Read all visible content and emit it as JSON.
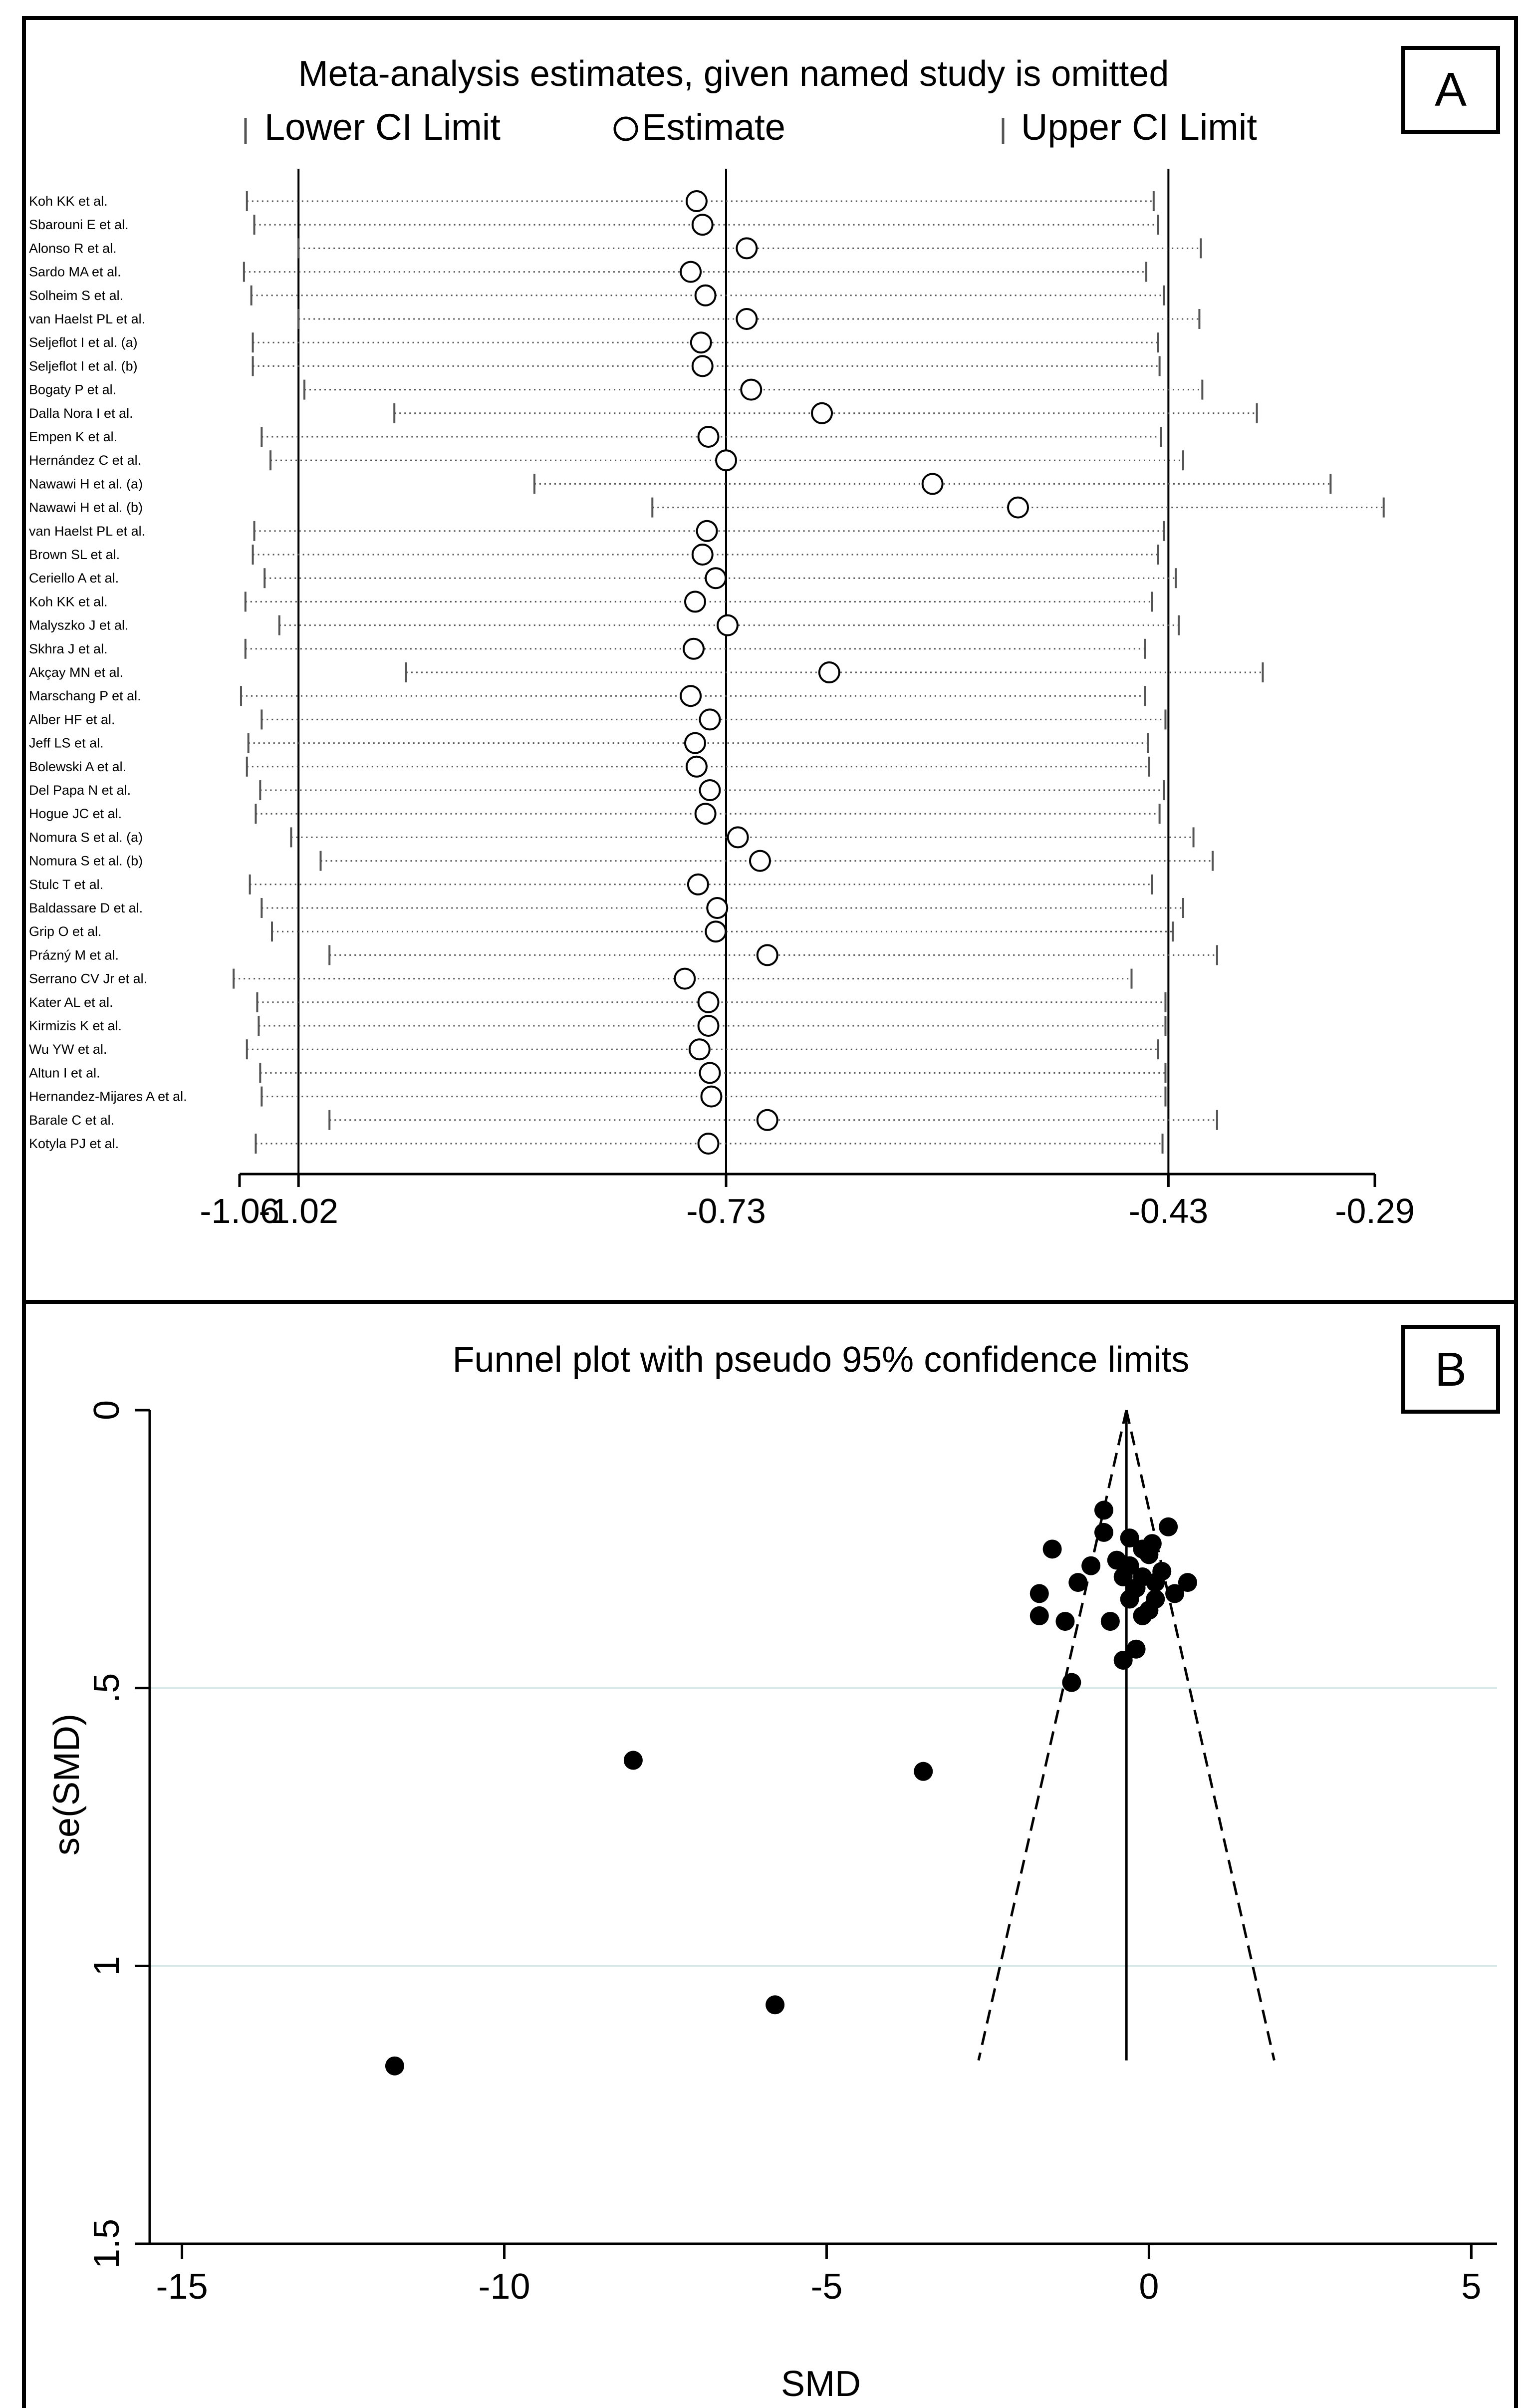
{
  "charts": {
    "sensitivity": {
      "type": "scatter",
      "panel_label": "A",
      "title": "Meta-analysis estimates, given named study is omitted",
      "legend": {
        "lower": "Lower CI Limit",
        "estimate": "Estimate",
        "upper": "Upper CI Limit"
      },
      "xticks": [
        -1.06,
        -1.02,
        -0.73,
        -0.43,
        -0.29
      ],
      "xtick_labels": [
        "-1.06",
        "-1.02",
        "-0.73",
        "-0.43",
        "-0.29"
      ],
      "reference_lines": [
        -1.02,
        -0.73,
        -0.43
      ],
      "xlim": [
        -1.06,
        -0.29
      ],
      "studies": [
        {
          "name": "Koh KK et al.",
          "lower": -1.055,
          "estimate": -0.75,
          "upper": -0.44
        },
        {
          "name": "Sbarouni E et al.",
          "lower": -1.05,
          "estimate": -0.746,
          "upper": -0.437
        },
        {
          "name": "Alonso R et al.",
          "lower": -1.02,
          "estimate": -0.716,
          "upper": -0.408
        },
        {
          "name": "Sardo MA et al.",
          "lower": -1.057,
          "estimate": -0.754,
          "upper": -0.445
        },
        {
          "name": "Solheim S et al.",
          "lower": -1.052,
          "estimate": -0.744,
          "upper": -0.433
        },
        {
          "name": "van Haelst PL et al.",
          "lower": -1.02,
          "estimate": -0.716,
          "upper": -0.409
        },
        {
          "name": "Seljeflot I et al. (a)",
          "lower": -1.051,
          "estimate": -0.747,
          "upper": -0.437
        },
        {
          "name": "Seljeflot I et al. (b)",
          "lower": -1.051,
          "estimate": -0.746,
          "upper": -0.436
        },
        {
          "name": "Bogaty P et al.",
          "lower": -1.016,
          "estimate": -0.713,
          "upper": -0.407
        },
        {
          "name": "Dalla Nora I et al.",
          "lower": -0.955,
          "estimate": -0.665,
          "upper": -0.37
        },
        {
          "name": "Empen K et al.",
          "lower": -1.045,
          "estimate": -0.742,
          "upper": -0.435
        },
        {
          "name": "Hernández C et al.",
          "lower": -1.039,
          "estimate": -0.73,
          "upper": -0.42
        },
        {
          "name": "Nawawi H et al. (a)",
          "lower": -0.86,
          "estimate": -0.59,
          "upper": -0.32
        },
        {
          "name": "Nawawi H et al. (b)",
          "lower": -0.78,
          "estimate": -0.532,
          "upper": -0.284
        },
        {
          "name": "van Haelst PL et al.",
          "lower": -1.05,
          "estimate": -0.743,
          "upper": -0.433
        },
        {
          "name": "Brown SL et al.",
          "lower": -1.051,
          "estimate": -0.746,
          "upper": -0.437
        },
        {
          "name": "Ceriello A et al.",
          "lower": -1.043,
          "estimate": -0.737,
          "upper": -0.425
        },
        {
          "name": "Koh KK et al.",
          "lower": -1.056,
          "estimate": -0.751,
          "upper": -0.441
        },
        {
          "name": "Malyszko J et al.",
          "lower": -1.033,
          "estimate": -0.729,
          "upper": -0.423
        },
        {
          "name": "Skhra J et al.",
          "lower": -1.056,
          "estimate": -0.752,
          "upper": -0.446
        },
        {
          "name": "Akçay MN et al.",
          "lower": -0.947,
          "estimate": -0.66,
          "upper": -0.366
        },
        {
          "name": "Marschang P et al.",
          "lower": -1.059,
          "estimate": -0.754,
          "upper": -0.446
        },
        {
          "name": "Alber HF et al.",
          "lower": -1.045,
          "estimate": -0.741,
          "upper": -0.432
        },
        {
          "name": "Jeff LS et al.",
          "lower": -1.054,
          "estimate": -0.751,
          "upper": -0.444
        },
        {
          "name": "Bolewski A et al.",
          "lower": -1.055,
          "estimate": -0.75,
          "upper": -0.443
        },
        {
          "name": "Del Papa N et al.",
          "lower": -1.046,
          "estimate": -0.741,
          "upper": -0.433
        },
        {
          "name": "Hogue JC et al.",
          "lower": -1.049,
          "estimate": -0.744,
          "upper": -0.436
        },
        {
          "name": "Nomura S et al. (a)",
          "lower": -1.025,
          "estimate": -0.722,
          "upper": -0.413
        },
        {
          "name": "Nomura S et al. (b)",
          "lower": -1.005,
          "estimate": -0.707,
          "upper": -0.4
        },
        {
          "name": "Stulc T et al.",
          "lower": -1.053,
          "estimate": -0.749,
          "upper": -0.441
        },
        {
          "name": "Baldassare D et al.",
          "lower": -1.045,
          "estimate": -0.736,
          "upper": -0.42
        },
        {
          "name": "Grip O et al.",
          "lower": -1.038,
          "estimate": -0.737,
          "upper": -0.427
        },
        {
          "name": "Prázný M et al.",
          "lower": -0.999,
          "estimate": -0.702,
          "upper": -0.397
        },
        {
          "name": "Serrano CV Jr et al.",
          "lower": -1.064,
          "estimate": -0.758,
          "upper": -0.455
        },
        {
          "name": "Kater AL et al.",
          "lower": -1.048,
          "estimate": -0.742,
          "upper": -0.432
        },
        {
          "name": "Kirmizis K et al.",
          "lower": -1.047,
          "estimate": -0.742,
          "upper": -0.432
        },
        {
          "name": "Wu YW et al.",
          "lower": -1.055,
          "estimate": -0.748,
          "upper": -0.437
        },
        {
          "name": "Altun I et al.",
          "lower": -1.046,
          "estimate": -0.741,
          "upper": -0.432
        },
        {
          "name": "Hernandez-Mijares A et al.",
          "lower": -1.045,
          "estimate": -0.74,
          "upper": -0.432
        },
        {
          "name": "Barale C et al.",
          "lower": -0.999,
          "estimate": -0.702,
          "upper": -0.397
        },
        {
          "name": "Kotyla PJ et al.",
          "lower": -1.049,
          "estimate": -0.742,
          "upper": -0.434
        }
      ]
    },
    "funnel": {
      "type": "scatter",
      "panel_label": "B",
      "title": "Funnel plot with pseudo 95% confidence limits",
      "xlabel": "SMD",
      "ylabel": "se(SMD)",
      "xlim": [
        -15.5,
        5.4
      ],
      "ylim": [
        0,
        1.5
      ],
      "y_inverted": true,
      "xticks": [
        -15,
        -10,
        -5,
        0,
        5
      ],
      "xtick_labels": [
        "-15",
        "-10",
        "-5",
        "0",
        "5"
      ],
      "yticks": [
        0,
        0.5,
        1,
        1.5
      ],
      "ytick_labels": [
        "0",
        ".5",
        "1",
        "1.5"
      ],
      "pooled_estimate": -0.35,
      "funnel_apex_se": 0,
      "funnel_base_se": 1.17,
      "points": [
        {
          "x": -8.0,
          "y": 0.63
        },
        {
          "x": -3.5,
          "y": 0.65
        },
        {
          "x": -5.8,
          "y": 1.07
        },
        {
          "x": -11.7,
          "y": 1.18
        },
        {
          "x": -0.7,
          "y": 0.18
        },
        {
          "x": -1.5,
          "y": 0.25
        },
        {
          "x": -0.7,
          "y": 0.22
        },
        {
          "x": -0.3,
          "y": 0.23
        },
        {
          "x": 0.3,
          "y": 0.21
        },
        {
          "x": -0.1,
          "y": 0.25
        },
        {
          "x": 0.0,
          "y": 0.26
        },
        {
          "x": -0.9,
          "y": 0.28
        },
        {
          "x": -0.5,
          "y": 0.27
        },
        {
          "x": -0.3,
          "y": 0.28
        },
        {
          "x": 0.2,
          "y": 0.29
        },
        {
          "x": -0.1,
          "y": 0.3
        },
        {
          "x": -1.7,
          "y": 0.33
        },
        {
          "x": -1.1,
          "y": 0.31
        },
        {
          "x": 0.1,
          "y": 0.31
        },
        {
          "x": 0.6,
          "y": 0.31
        },
        {
          "x": 0.4,
          "y": 0.33
        },
        {
          "x": -0.2,
          "y": 0.32
        },
        {
          "x": -0.3,
          "y": 0.34
        },
        {
          "x": 0.0,
          "y": 0.36
        },
        {
          "x": -1.7,
          "y": 0.37
        },
        {
          "x": -1.3,
          "y": 0.38
        },
        {
          "x": -0.6,
          "y": 0.38
        },
        {
          "x": -0.1,
          "y": 0.37
        },
        {
          "x": -0.2,
          "y": 0.43
        },
        {
          "x": -0.4,
          "y": 0.45
        },
        {
          "x": -1.2,
          "y": 0.49
        },
        {
          "x": 0.1,
          "y": 0.34
        },
        {
          "x": -0.4,
          "y": 0.3
        },
        {
          "x": 0.05,
          "y": 0.24
        }
      ]
    }
  }
}
